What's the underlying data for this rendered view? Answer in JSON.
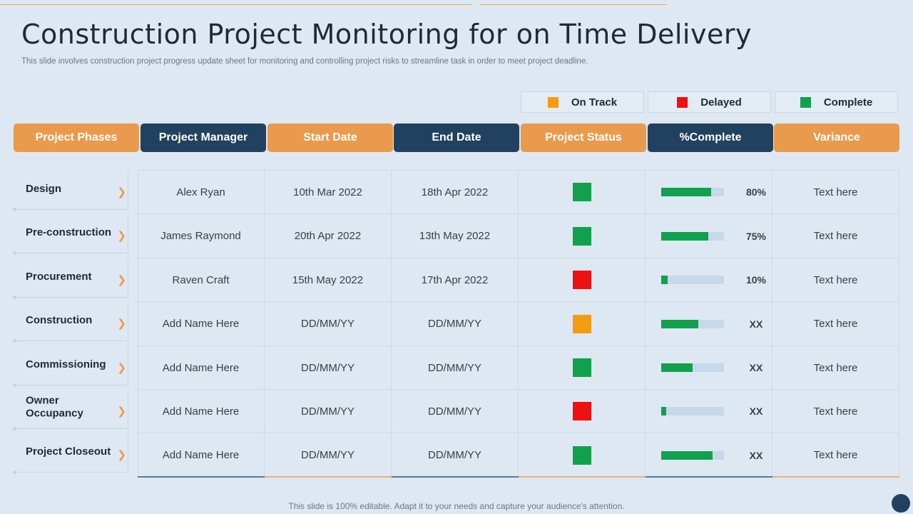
{
  "title": "Construction Project Monitoring for on Time Delivery",
  "subtitle": "This slide involves construction project progress update sheet for monitoring and controlling project risks to streamline task in order to meet project deadline.",
  "legend": [
    {
      "label": "On Track",
      "color": "#f39c12",
      "icon": "square-icon"
    },
    {
      "label": "Delayed",
      "color": "#ee1111",
      "icon": "square-icon"
    },
    {
      "label": "Complete",
      "color": "#11a04e",
      "icon": "square-icon"
    }
  ],
  "headers": [
    "Project Phases",
    "Project Manager",
    "Start Date",
    "End Date",
    "Project Status",
    "%Complete",
    "Variance"
  ],
  "rows": [
    {
      "phase": "Design",
      "manager": "Alex Ryan",
      "start": "10th Mar 2022",
      "end": "18th Apr 2022",
      "status": "#11a04e",
      "progress": 80,
      "pct_label": "80%",
      "variance": "Text here"
    },
    {
      "phase": "Pre-construction",
      "manager": "James Raymond",
      "start": "20th Apr 2022",
      "end": "13th May 2022",
      "status": "#11a04e",
      "progress": 75,
      "pct_label": "75%",
      "variance": "Text here"
    },
    {
      "phase": "Procurement",
      "manager": "Raven Craft",
      "start": "15th May 2022",
      "end": "17th Apr 2022",
      "status": "#ee1111",
      "progress": 10,
      "pct_label": "10%",
      "variance": "Text here"
    },
    {
      "phase": "Construction",
      "manager": "Add Name Here",
      "start": "DD/MM/YY",
      "end": "DD/MM/YY",
      "status": "#f39c12",
      "progress": 59,
      "pct_label": "XX",
      "variance": "Text here"
    },
    {
      "phase": "Commissioning",
      "manager": "Add Name Here",
      "start": "DD/MM/YY",
      "end": "DD/MM/YY",
      "status": "#11a04e",
      "progress": 50,
      "pct_label": "XX",
      "variance": "Text here"
    },
    {
      "phase": "Owner Occupancy",
      "manager": "Add Name Here",
      "start": "DD/MM/YY",
      "end": "DD/MM/YY",
      "status": "#ee1111",
      "progress": 8,
      "pct_label": "XX",
      "variance": "Text here"
    },
    {
      "phase": "Project Closeout",
      "manager": "Add Name Here",
      "start": "DD/MM/YY",
      "end": "DD/MM/YY",
      "status": "#11a04e",
      "progress": 82,
      "pct_label": "XX",
      "variance": "Text here"
    }
  ],
  "footer": "This slide is 100% editable. Adapt it to your needs and capture your audience's attention."
}
